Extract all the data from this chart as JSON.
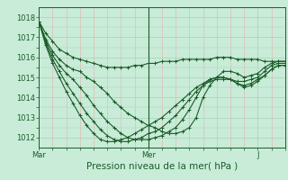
{
  "title": "",
  "xlabel": "Pression niveau de la mer( hPa )",
  "ylabel": "",
  "bg_color": "#c8ecd8",
  "plot_bg_color": "#c8ecd8",
  "grid_color_major": "#aacfba",
  "grid_color_minor": "#c0dece",
  "grid_color_red": "#e8b0b0",
  "line_color": "#1a5c28",
  "tick_label_color": "#1a5c28",
  "axis_color": "#1a5c28",
  "ylim": [
    1011.5,
    1018.5
  ],
  "yticks": [
    1012,
    1013,
    1014,
    1015,
    1016,
    1017,
    1018
  ],
  "xtick_positions": [
    0,
    48,
    96
  ],
  "xtick_labels": [
    "Mar",
    "Mer",
    "J"
  ],
  "total_hours": 108,
  "series": [
    {
      "x": [
        0,
        3,
        6,
        9,
        12,
        15,
        18,
        21,
        24,
        27,
        30,
        33,
        36,
        39,
        42,
        45,
        48,
        51,
        54,
        57,
        60,
        63,
        66,
        69,
        72,
        75,
        78,
        81,
        84,
        87,
        90,
        93,
        96,
        99,
        102,
        105,
        108
      ],
      "y": [
        1017.8,
        1017.2,
        1016.8,
        1016.4,
        1016.2,
        1016.0,
        1015.9,
        1015.8,
        1015.7,
        1015.6,
        1015.5,
        1015.5,
        1015.5,
        1015.5,
        1015.6,
        1015.6,
        1015.7,
        1015.7,
        1015.8,
        1015.8,
        1015.8,
        1015.9,
        1015.9,
        1015.9,
        1015.9,
        1015.9,
        1016.0,
        1016.0,
        1016.0,
        1015.9,
        1015.9,
        1015.9,
        1015.9,
        1015.8,
        1015.8,
        1015.8,
        1015.8
      ]
    },
    {
      "x": [
        0,
        3,
        6,
        9,
        12,
        15,
        18,
        21,
        24,
        27,
        30,
        33,
        36,
        39,
        42,
        45,
        48,
        51,
        54,
        57,
        60,
        63,
        66,
        69,
        72,
        75,
        78,
        81,
        84,
        87,
        90,
        93,
        96,
        99,
        102,
        105,
        108
      ],
      "y": [
        1017.8,
        1016.9,
        1016.3,
        1015.9,
        1015.6,
        1015.4,
        1015.3,
        1015.0,
        1014.8,
        1014.5,
        1014.2,
        1013.8,
        1013.5,
        1013.2,
        1013.0,
        1012.8,
        1012.6,
        1012.5,
        1012.3,
        1012.2,
        1012.2,
        1012.3,
        1012.5,
        1013.0,
        1014.0,
        1014.6,
        1015.0,
        1015.3,
        1015.3,
        1015.2,
        1015.0,
        1015.1,
        1015.2,
        1015.5,
        1015.7,
        1015.8,
        1015.8
      ]
    },
    {
      "x": [
        0,
        3,
        6,
        9,
        12,
        15,
        18,
        21,
        24,
        27,
        30,
        33,
        36,
        39,
        42,
        45,
        48,
        51,
        54,
        57,
        60,
        63,
        66,
        69,
        72,
        75,
        78,
        81,
        84,
        87,
        90,
        93,
        96,
        99,
        102,
        105,
        108
      ],
      "y": [
        1017.8,
        1016.8,
        1016.1,
        1015.6,
        1015.2,
        1014.9,
        1014.5,
        1014.1,
        1013.6,
        1013.2,
        1012.8,
        1012.5,
        1012.2,
        1012.0,
        1011.9,
        1011.9,
        1011.9,
        1012.0,
        1012.1,
        1012.3,
        1012.5,
        1012.9,
        1013.4,
        1014.0,
        1014.6,
        1014.9,
        1015.0,
        1015.0,
        1014.9,
        1014.8,
        1014.8,
        1014.9,
        1015.0,
        1015.3,
        1015.6,
        1015.7,
        1015.7
      ]
    },
    {
      "x": [
        0,
        3,
        6,
        9,
        12,
        15,
        18,
        21,
        24,
        27,
        30,
        33,
        36,
        39,
        42,
        45,
        48,
        51,
        54,
        57,
        60,
        63,
        66,
        69,
        72,
        75,
        78,
        81,
        84,
        87,
        90,
        93,
        96,
        99,
        102,
        105,
        108
      ],
      "y": [
        1017.8,
        1016.7,
        1015.9,
        1015.3,
        1014.7,
        1014.2,
        1013.7,
        1013.2,
        1012.8,
        1012.4,
        1012.1,
        1011.9,
        1011.8,
        1011.8,
        1011.9,
        1012.0,
        1012.2,
        1012.3,
        1012.5,
        1012.8,
        1013.1,
        1013.5,
        1013.9,
        1014.3,
        1014.6,
        1014.8,
        1014.9,
        1014.9,
        1014.9,
        1014.7,
        1014.5,
        1014.6,
        1014.8,
        1015.1,
        1015.4,
        1015.6,
        1015.6
      ]
    },
    {
      "x": [
        0,
        3,
        6,
        9,
        12,
        15,
        18,
        21,
        24,
        27,
        30,
        33,
        36,
        39,
        42,
        45,
        48,
        51,
        54,
        57,
        60,
        63,
        66,
        69,
        72,
        75,
        78,
        81,
        84,
        87,
        90,
        93,
        96,
        99,
        102,
        105,
        108
      ],
      "y": [
        1017.8,
        1016.6,
        1015.7,
        1015.0,
        1014.3,
        1013.7,
        1013.1,
        1012.6,
        1012.2,
        1011.9,
        1011.8,
        1011.8,
        1011.9,
        1012.0,
        1012.2,
        1012.4,
        1012.6,
        1012.8,
        1013.0,
        1013.3,
        1013.6,
        1013.9,
        1014.2,
        1014.5,
        1014.7,
        1014.9,
        1015.0,
        1015.0,
        1014.9,
        1014.7,
        1014.6,
        1014.7,
        1014.9,
        1015.1,
        1015.4,
        1015.6,
        1015.6
      ]
    }
  ],
  "vline_x": 48,
  "marker": "+",
  "markersize": 3,
  "linewidth": 0.8,
  "fontsize_tick": 6,
  "fontsize_xlabel": 7.5
}
